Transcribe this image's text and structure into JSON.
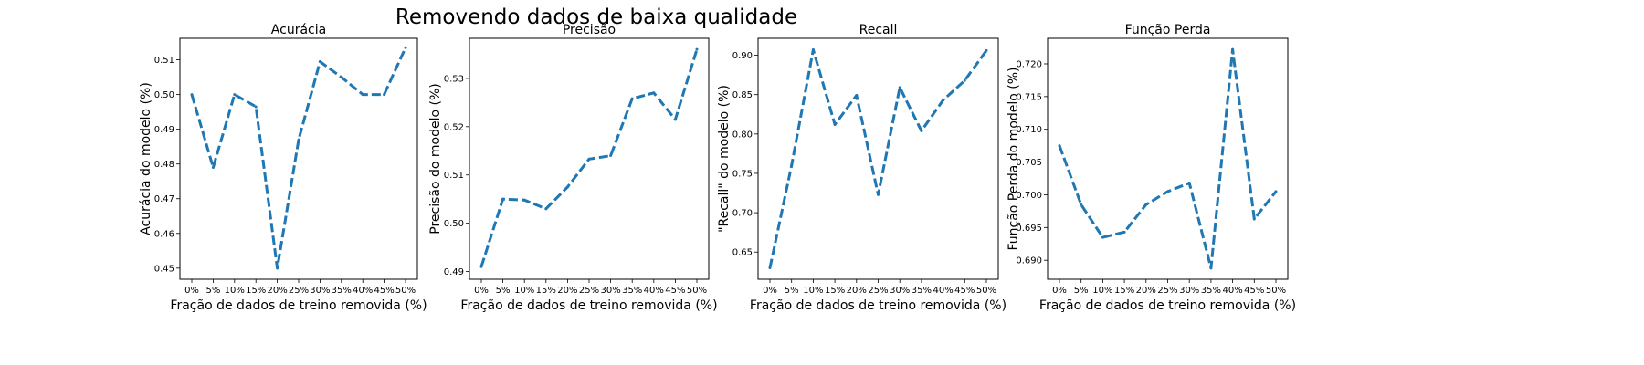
{
  "figure": {
    "suptitle": "Removendo dados de baixa qualidade"
  },
  "chart_data": [
    {
      "type": "line",
      "title": "Acurácia",
      "xlabel": "Fração de dados de treino removida (%)",
      "ylabel": "Acurácia do modelo (%)",
      "categories": [
        "0%",
        "5%",
        "10%",
        "15%",
        "20%",
        "25%",
        "30%",
        "35%",
        "40%",
        "45%",
        "50%"
      ],
      "values": [
        0.5,
        0.479,
        0.5,
        0.4965,
        0.45,
        0.487,
        0.5095,
        0.505,
        0.5,
        0.5,
        0.5135
      ],
      "yticks": [
        0.45,
        0.46,
        0.47,
        0.48,
        0.49,
        0.5,
        0.51
      ],
      "ytick_labels": [
        "0.45",
        "0.46",
        "0.47",
        "0.48",
        "0.49",
        "0.50",
        "0.51"
      ],
      "ylim": [
        0.4468,
        0.5162
      ],
      "line_color": "#1f77b4",
      "line_style": "dashed"
    },
    {
      "type": "line",
      "title": "Precisão",
      "xlabel": "Fração de dados de treino removida (%)",
      "ylabel": "Precisão do modelo (%)",
      "categories": [
        "0%",
        "5%",
        "10%",
        "15%",
        "20%",
        "25%",
        "30%",
        "35%",
        "40%",
        "45%",
        "50%"
      ],
      "values": [
        0.491,
        0.505,
        0.5048,
        0.503,
        0.5075,
        0.5133,
        0.514,
        0.5258,
        0.527,
        0.5215,
        0.536
      ],
      "yticks": [
        0.49,
        0.5,
        0.51,
        0.52,
        0.53
      ],
      "ytick_labels": [
        "0.49",
        "0.50",
        "0.51",
        "0.52",
        "0.53"
      ],
      "ylim": [
        0.4884,
        0.5383
      ],
      "line_color": "#1f77b4",
      "line_style": "dashed"
    },
    {
      "type": "line",
      "title": "Recall",
      "xlabel": "Fração de dados de treino removida (%)",
      "ylabel": "\"Recall\" do modelo (%)",
      "categories": [
        "0%",
        "5%",
        "10%",
        "15%",
        "20%",
        "25%",
        "30%",
        "35%",
        "40%",
        "45%",
        "50%"
      ],
      "values": [
        0.63,
        0.76,
        0.907,
        0.812,
        0.849,
        0.723,
        0.859,
        0.804,
        0.843,
        0.868,
        0.906
      ],
      "yticks": [
        0.65,
        0.7,
        0.75,
        0.8,
        0.85,
        0.9
      ],
      "ytick_labels": [
        "0.65",
        "0.70",
        "0.75",
        "0.80",
        "0.85",
        "0.90"
      ],
      "ylim": [
        0.6155,
        0.9215
      ],
      "line_color": "#1f77b4",
      "line_style": "dashed"
    },
    {
      "type": "line",
      "title": "Função Perda",
      "xlabel": "Fração de dados de treino removida (%)",
      "ylabel": "Função Perda do modelo (%)",
      "categories": [
        "0%",
        "5%",
        "10%",
        "15%",
        "20%",
        "25%",
        "30%",
        "35%",
        "40%",
        "45%",
        "50%"
      ],
      "values": [
        0.7075,
        0.6985,
        0.6935,
        0.6943,
        0.6985,
        0.7005,
        0.7018,
        0.6888,
        0.7222,
        0.6963,
        0.7005
      ],
      "yticks": [
        0.69,
        0.695,
        0.7,
        0.705,
        0.71,
        0.715,
        0.72
      ],
      "ytick_labels": [
        "0.690",
        "0.695",
        "0.700",
        "0.705",
        "0.710",
        "0.715",
        "0.720"
      ],
      "ylim": [
        0.6871,
        0.7239
      ],
      "line_color": "#1f77b4",
      "line_style": "dashed"
    }
  ]
}
